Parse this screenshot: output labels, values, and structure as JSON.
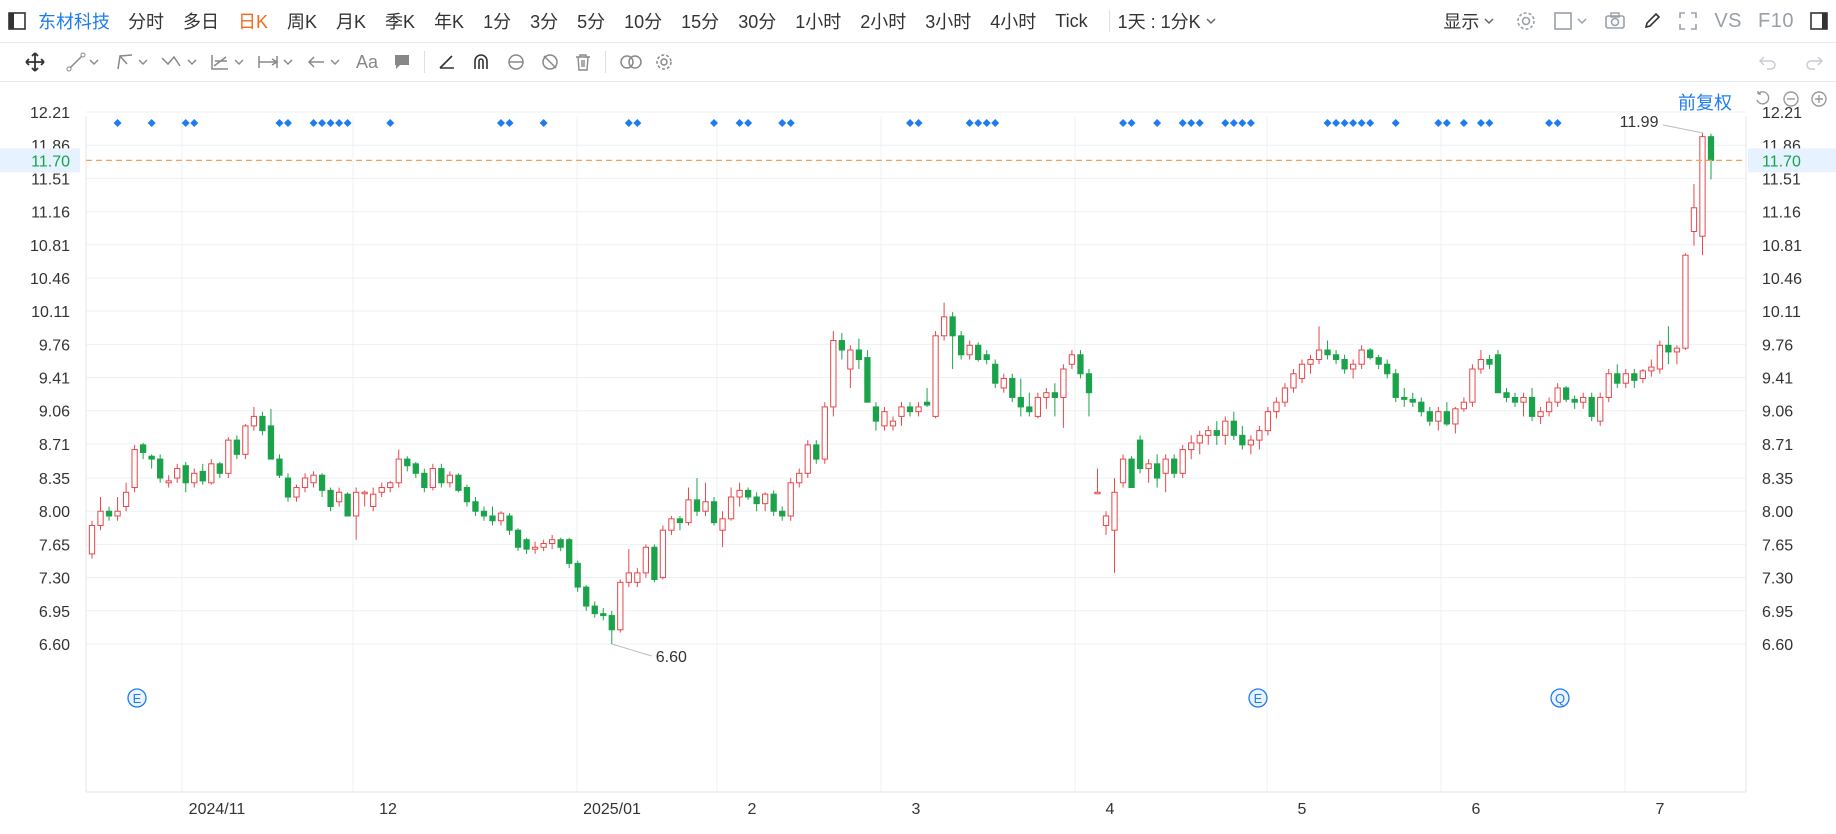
{
  "toolbar": {
    "stock_name": "东材科技",
    "periods": [
      "分时",
      "多日",
      "日K",
      "周K",
      "月K",
      "季K",
      "年K",
      "1分",
      "3分",
      "5分",
      "10分",
      "15分",
      "30分",
      "1小时",
      "2小时",
      "3小时",
      "4小时",
      "Tick"
    ],
    "active_period": "日K",
    "interval_select": "1天 : 1分K",
    "display_label": "显示",
    "vs_label": "VS",
    "f10_label": "F10"
  },
  "adjust": {
    "label": "前复权"
  },
  "colors": {
    "up": "#e8474a",
    "down": "#1aa34a",
    "accent": "#1e7cf0",
    "active_period": "#f26b1d",
    "current_line": "#f5a05a",
    "current_text": "#16a34a"
  },
  "chart_data": {
    "type": "candlestick",
    "price_ticks": [
      "12.21",
      "11.86",
      "11.51",
      "11.16",
      "10.81",
      "10.46",
      "10.11",
      "9.76",
      "9.41",
      "9.06",
      "8.71",
      "8.35",
      "8.00",
      "7.65",
      "7.30",
      "6.95",
      "6.60"
    ],
    "y_range": [
      6.6,
      12.21
    ],
    "x_labels": [
      "2024/11",
      "12",
      "2025/01",
      "2",
      "3",
      "4",
      "5",
      "6",
      "7"
    ],
    "current_price": "11.70",
    "annotations": {
      "high": "11.99",
      "low": "6.60"
    },
    "event_badges": [
      "E",
      "E",
      "Q"
    ],
    "ohlc": [
      [
        7.55,
        7.9,
        7.5,
        7.85
      ],
      [
        7.85,
        8.15,
        7.8,
        8.0
      ],
      [
        8.0,
        8.05,
        7.9,
        7.95
      ],
      [
        7.95,
        8.15,
        7.9,
        8.0
      ],
      [
        8.05,
        8.3,
        8.0,
        8.2
      ],
      [
        8.25,
        8.7,
        8.2,
        8.65
      ],
      [
        8.7,
        8.72,
        8.55,
        8.62
      ],
      [
        8.58,
        8.6,
        8.45,
        8.55
      ],
      [
        8.55,
        8.6,
        8.3,
        8.35
      ],
      [
        8.3,
        8.38,
        8.25,
        8.32
      ],
      [
        8.35,
        8.5,
        8.3,
        8.45
      ],
      [
        8.48,
        8.52,
        8.2,
        8.3
      ],
      [
        8.3,
        8.45,
        8.25,
        8.4
      ],
      [
        8.42,
        8.5,
        8.28,
        8.32
      ],
      [
        8.3,
        8.55,
        8.28,
        8.5
      ],
      [
        8.5,
        8.52,
        8.35,
        8.4
      ],
      [
        8.4,
        8.78,
        8.35,
        8.75
      ],
      [
        8.75,
        8.8,
        8.55,
        8.6
      ],
      [
        8.6,
        8.92,
        8.55,
        8.9
      ],
      [
        8.9,
        9.1,
        8.85,
        9.0
      ],
      [
        9.0,
        9.05,
        8.8,
        8.85
      ],
      [
        8.9,
        9.08,
        8.55,
        8.55
      ],
      [
        8.55,
        8.6,
        8.35,
        8.38
      ],
      [
        8.35,
        8.4,
        8.1,
        8.15
      ],
      [
        8.15,
        8.28,
        8.1,
        8.25
      ],
      [
        8.25,
        8.4,
        8.2,
        8.35
      ],
      [
        8.3,
        8.42,
        8.25,
        8.38
      ],
      [
        8.38,
        8.4,
        8.15,
        8.22
      ],
      [
        8.22,
        8.25,
        8.0,
        8.05
      ],
      [
        8.1,
        8.25,
        8.05,
        8.2
      ],
      [
        8.18,
        8.2,
        7.95,
        7.95
      ],
      [
        7.95,
        8.25,
        7.7,
        8.2
      ],
      [
        8.2,
        8.22,
        8.05,
        8.2
      ],
      [
        8.05,
        8.25,
        8.0,
        8.18
      ],
      [
        8.2,
        8.3,
        8.15,
        8.25
      ],
      [
        8.25,
        8.32,
        8.2,
        8.3
      ],
      [
        8.3,
        8.65,
        8.25,
        8.55
      ],
      [
        8.55,
        8.58,
        8.42,
        8.48
      ],
      [
        8.5,
        8.52,
        8.35,
        8.4
      ],
      [
        8.4,
        8.45,
        8.2,
        8.25
      ],
      [
        8.25,
        8.5,
        8.22,
        8.45
      ],
      [
        8.45,
        8.5,
        8.25,
        8.3
      ],
      [
        8.3,
        8.42,
        8.25,
        8.38
      ],
      [
        8.38,
        8.4,
        8.2,
        8.22
      ],
      [
        8.25,
        8.28,
        8.05,
        8.1
      ],
      [
        8.1,
        8.15,
        7.95,
        8.0
      ],
      [
        8.0,
        8.05,
        7.9,
        7.95
      ],
      [
        7.95,
        8.05,
        7.85,
        7.9
      ],
      [
        7.9,
        8.0,
        7.85,
        7.98
      ],
      [
        7.95,
        7.98,
        7.75,
        7.8
      ],
      [
        7.8,
        7.82,
        7.58,
        7.62
      ],
      [
        7.7,
        7.72,
        7.55,
        7.6
      ],
      [
        7.6,
        7.68,
        7.55,
        7.62
      ],
      [
        7.62,
        7.7,
        7.58,
        7.66
      ],
      [
        7.66,
        7.75,
        7.6,
        7.7
      ],
      [
        7.7,
        7.72,
        7.58,
        7.62
      ],
      [
        7.7,
        7.72,
        7.4,
        7.45
      ],
      [
        7.45,
        7.48,
        7.15,
        7.2
      ],
      [
        7.2,
        7.22,
        6.95,
        7.0
      ],
      [
        7.0,
        7.05,
        6.88,
        6.92
      ],
      [
        6.92,
        6.98,
        6.85,
        6.9
      ],
      [
        6.9,
        6.95,
        6.6,
        6.75
      ],
      [
        6.75,
        7.28,
        6.72,
        7.25
      ],
      [
        7.25,
        7.6,
        7.2,
        7.35
      ],
      [
        7.25,
        7.4,
        7.2,
        7.35
      ],
      [
        7.35,
        7.65,
        7.3,
        7.62
      ],
      [
        7.62,
        7.65,
        7.25,
        7.28
      ],
      [
        7.3,
        7.85,
        7.28,
        7.8
      ],
      [
        7.8,
        7.95,
        7.75,
        7.92
      ],
      [
        7.92,
        7.95,
        7.8,
        7.88
      ],
      [
        7.88,
        8.25,
        7.85,
        8.12
      ],
      [
        8.12,
        8.35,
        7.95,
        8.0
      ],
      [
        8.0,
        8.3,
        7.95,
        8.1
      ],
      [
        8.1,
        8.15,
        7.85,
        7.88
      ],
      [
        7.8,
        8.0,
        7.62,
        7.92
      ],
      [
        7.92,
        8.25,
        7.9,
        8.15
      ],
      [
        8.15,
        8.3,
        8.05,
        8.22
      ],
      [
        8.22,
        8.25,
        8.12,
        8.15
      ],
      [
        8.15,
        8.2,
        8.0,
        8.08
      ],
      [
        8.08,
        8.2,
        8.0,
        8.18
      ],
      [
        8.18,
        8.22,
        7.95,
        8.0
      ],
      [
        8.0,
        8.05,
        7.9,
        7.95
      ],
      [
        7.95,
        8.35,
        7.9,
        8.3
      ],
      [
        8.3,
        8.45,
        8.25,
        8.4
      ],
      [
        8.4,
        8.75,
        8.35,
        8.7
      ],
      [
        8.7,
        8.75,
        8.5,
        8.55
      ],
      [
        8.55,
        9.15,
        8.5,
        9.1
      ],
      [
        9.1,
        9.9,
        9.0,
        9.8
      ],
      [
        9.8,
        9.88,
        9.6,
        9.7
      ],
      [
        9.5,
        9.75,
        9.3,
        9.7
      ],
      [
        9.7,
        9.82,
        9.5,
        9.6
      ],
      [
        9.62,
        9.7,
        9.15,
        9.15
      ],
      [
        9.1,
        9.15,
        8.85,
        8.95
      ],
      [
        8.9,
        9.1,
        8.85,
        9.05
      ],
      [
        8.9,
        9.0,
        8.85,
        8.95
      ],
      [
        9.0,
        9.15,
        8.9,
        9.1
      ],
      [
        9.1,
        9.15,
        9.0,
        9.05
      ],
      [
        9.05,
        9.15,
        9.0,
        9.1
      ],
      [
        9.15,
        9.3,
        9.1,
        9.12
      ],
      [
        9.0,
        9.9,
        8.98,
        9.85
      ],
      [
        9.85,
        10.2,
        9.8,
        10.05
      ],
      [
        10.05,
        10.1,
        9.5,
        9.85
      ],
      [
        9.85,
        9.9,
        9.6,
        9.65
      ],
      [
        9.65,
        9.8,
        9.6,
        9.75
      ],
      [
        9.75,
        9.78,
        9.58,
        9.6
      ],
      [
        9.65,
        9.7,
        9.55,
        9.6
      ],
      [
        9.55,
        9.6,
        9.3,
        9.35
      ],
      [
        9.3,
        9.45,
        9.25,
        9.4
      ],
      [
        9.4,
        9.45,
        9.15,
        9.2
      ],
      [
        9.2,
        9.4,
        9.0,
        9.1
      ],
      [
        9.1,
        9.25,
        9.0,
        9.05
      ],
      [
        9.0,
        9.25,
        8.98,
        9.2
      ],
      [
        9.2,
        9.3,
        9.08,
        9.25
      ],
      [
        9.25,
        9.35,
        9.0,
        9.2
      ],
      [
        9.2,
        9.55,
        8.88,
        9.5
      ],
      [
        9.55,
        9.7,
        9.5,
        9.65
      ],
      [
        9.65,
        9.7,
        9.4,
        9.45
      ],
      [
        9.45,
        9.5,
        9.0,
        9.25
      ],
      [
        8.2,
        8.45,
        8.18,
        8.2
      ],
      [
        7.85,
        8.0,
        7.75,
        7.95
      ],
      [
        7.8,
        8.35,
        7.35,
        8.2
      ],
      [
        8.3,
        8.6,
        8.25,
        8.55
      ],
      [
        8.55,
        8.58,
        8.25,
        8.25
      ],
      [
        8.75,
        8.8,
        8.4,
        8.45
      ],
      [
        8.45,
        8.55,
        8.3,
        8.5
      ],
      [
        8.5,
        8.6,
        8.25,
        8.35
      ],
      [
        8.4,
        8.6,
        8.2,
        8.55
      ],
      [
        8.55,
        8.6,
        8.35,
        8.4
      ],
      [
        8.4,
        8.7,
        8.35,
        8.65
      ],
      [
        8.65,
        8.8,
        8.55,
        8.72
      ],
      [
        8.72,
        8.85,
        8.6,
        8.8
      ],
      [
        8.8,
        8.9,
        8.7,
        8.85
      ],
      [
        8.85,
        8.95,
        8.7,
        8.8
      ],
      [
        8.8,
        9.0,
        8.7,
        8.95
      ],
      [
        8.95,
        9.05,
        8.75,
        8.8
      ],
      [
        8.8,
        8.9,
        8.65,
        8.7
      ],
      [
        8.7,
        8.8,
        8.6,
        8.75
      ],
      [
        8.75,
        8.9,
        8.65,
        8.85
      ],
      [
        8.85,
        9.1,
        8.8,
        9.05
      ],
      [
        9.05,
        9.2,
        8.98,
        9.15
      ],
      [
        9.15,
        9.35,
        9.1,
        9.3
      ],
      [
        9.3,
        9.5,
        9.25,
        9.45
      ],
      [
        9.4,
        9.6,
        9.35,
        9.55
      ],
      [
        9.55,
        9.65,
        9.45,
        9.6
      ],
      [
        9.6,
        9.95,
        9.55,
        9.7
      ],
      [
        9.7,
        9.8,
        9.6,
        9.65
      ],
      [
        9.65,
        9.7,
        9.55,
        9.6
      ],
      [
        9.6,
        9.65,
        9.45,
        9.5
      ],
      [
        9.5,
        9.6,
        9.4,
        9.55
      ],
      [
        9.55,
        9.75,
        9.5,
        9.7
      ],
      [
        9.7,
        9.72,
        9.6,
        9.62
      ],
      [
        9.62,
        9.65,
        9.5,
        9.55
      ],
      [
        9.55,
        9.6,
        9.4,
        9.45
      ],
      [
        9.45,
        9.5,
        9.15,
        9.2
      ],
      [
        9.2,
        9.3,
        9.1,
        9.18
      ],
      [
        9.18,
        9.25,
        9.1,
        9.15
      ],
      [
        9.15,
        9.2,
        9.0,
        9.05
      ],
      [
        9.05,
        9.1,
        8.9,
        8.95
      ],
      [
        8.95,
        9.1,
        8.85,
        9.05
      ],
      [
        9.05,
        9.15,
        8.9,
        8.92
      ],
      [
        8.92,
        9.1,
        8.82,
        9.08
      ],
      [
        9.08,
        9.2,
        9.05,
        9.15
      ],
      [
        9.15,
        9.55,
        9.1,
        9.5
      ],
      [
        9.5,
        9.7,
        9.45,
        9.6
      ],
      [
        9.6,
        9.65,
        9.5,
        9.55
      ],
      [
        9.65,
        9.7,
        9.25,
        9.25
      ],
      [
        9.25,
        9.3,
        9.15,
        9.2
      ],
      [
        9.2,
        9.25,
        9.1,
        9.15
      ],
      [
        9.15,
        9.25,
        9.0,
        9.2
      ],
      [
        9.2,
        9.3,
        8.95,
        9.0
      ],
      [
        9.0,
        9.1,
        8.92,
        9.05
      ],
      [
        9.05,
        9.2,
        9.0,
        9.15
      ],
      [
        9.15,
        9.35,
        9.1,
        9.3
      ],
      [
        9.3,
        9.32,
        9.15,
        9.18
      ],
      [
        9.18,
        9.22,
        9.08,
        9.15
      ],
      [
        9.15,
        9.25,
        9.08,
        9.2
      ],
      [
        9.2,
        9.25,
        8.95,
        9.0
      ],
      [
        8.95,
        9.25,
        8.9,
        9.2
      ],
      [
        9.2,
        9.5,
        9.15,
        9.45
      ],
      [
        9.45,
        9.55,
        9.3,
        9.35
      ],
      [
        9.35,
        9.5,
        9.3,
        9.45
      ],
      [
        9.45,
        9.5,
        9.3,
        9.38
      ],
      [
        9.4,
        9.5,
        9.35,
        9.48
      ],
      [
        9.48,
        9.6,
        9.42,
        9.52
      ],
      [
        9.5,
        9.8,
        9.45,
        9.75
      ],
      [
        9.75,
        9.95,
        9.55,
        9.68
      ],
      [
        9.68,
        9.75,
        9.55,
        9.72
      ],
      [
        9.72,
        10.72,
        9.7,
        10.7
      ],
      [
        10.95,
        11.45,
        10.8,
        11.2
      ],
      [
        10.9,
        11.99,
        10.7,
        11.95
      ],
      [
        11.95,
        11.98,
        11.5,
        11.7
      ]
    ]
  }
}
